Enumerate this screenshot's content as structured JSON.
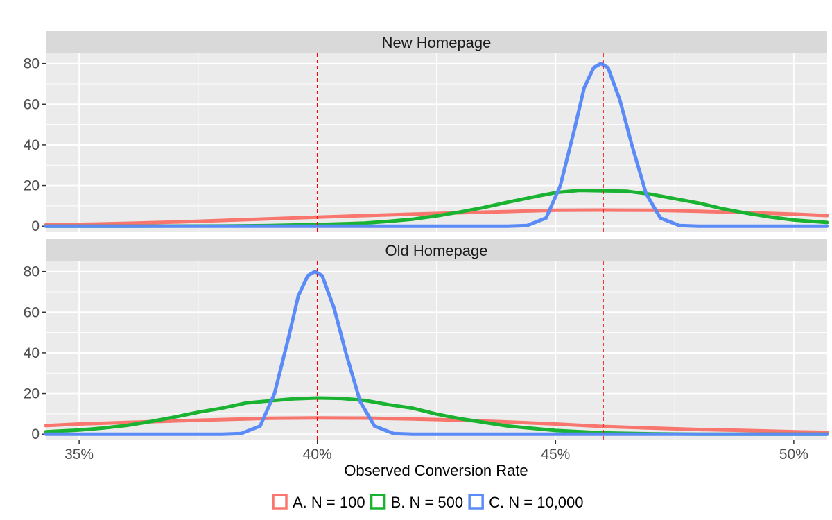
{
  "chart_data": {
    "type": "line",
    "xlabel": "Observed Conversion Rate",
    "ylabel": "",
    "xlim": [
      0.343,
      0.507
    ],
    "ylim": [
      -3,
      85
    ],
    "x_ticks": [
      0.35,
      0.4,
      0.45,
      0.5
    ],
    "x_tick_labels": [
      "35%",
      "40%",
      "45%",
      "50%"
    ],
    "y_ticks": [
      0,
      20,
      40,
      60,
      80
    ],
    "y_tick_labels": [
      "0",
      "20",
      "40",
      "60",
      "80"
    ],
    "grid": true,
    "legend_position": "bottom",
    "reference_lines": [
      0.4,
      0.46
    ],
    "reference_line_color": "#ff0000",
    "series_styles": [
      {
        "name": "A. N = 100",
        "color": "#f8766d"
      },
      {
        "name": "B. N = 500",
        "color": "#19b231"
      },
      {
        "name": "C. N = 10,000",
        "color": "#5b8bf7"
      }
    ],
    "facets": [
      {
        "title": "New Homepage",
        "series": [
          {
            "name": "A. N = 100",
            "x": [
              0.343,
              0.35,
              0.36,
              0.37,
              0.38,
              0.39,
              0.4,
              0.41,
              0.42,
              0.43,
              0.44,
              0.45,
              0.46,
              0.47,
              0.48,
              0.49,
              0.5,
              0.507
            ],
            "y": [
              0.6,
              0.9,
              1.4,
              2.0,
              2.8,
              3.6,
              4.4,
              5.2,
              5.9,
              6.6,
              7.2,
              7.8,
              7.9,
              7.8,
              7.3,
              6.7,
              5.9,
              5.2
            ]
          },
          {
            "name": "B. N = 500",
            "x": [
              0.343,
              0.36,
              0.38,
              0.39,
              0.4,
              0.41,
              0.415,
              0.42,
              0.425,
              0.43,
              0.435,
              0.44,
              0.445,
              0.45,
              0.455,
              0.46,
              0.465,
              0.47,
              0.475,
              0.48,
              0.485,
              0.49,
              0.495,
              0.5,
              0.507
            ],
            "y": [
              0,
              0,
              0.1,
              0.3,
              0.8,
              1.5,
              2.4,
              3.4,
              5.0,
              7.0,
              9.2,
              11.8,
              14.2,
              16.5,
              17.6,
              17.4,
              17.2,
              15.7,
              13.5,
              11.4,
              8.6,
              6.4,
              4.5,
              3.0,
              1.8
            ]
          },
          {
            "name": "C. N = 10,000",
            "x": [
              0.343,
              0.44,
              0.444,
              0.448,
              0.451,
              0.454,
              0.456,
              0.458,
              0.4595,
              0.461,
              0.4635,
              0.466,
              0.469,
              0.472,
              0.476,
              0.48,
              0.507
            ],
            "y": [
              0,
              0,
              0.3,
              4,
              20,
              48,
              68,
              78,
              80,
              78,
              62,
              40,
              16,
              4,
              0.3,
              0,
              0
            ]
          }
        ]
      },
      {
        "title": "Old Homepage",
        "series": [
          {
            "name": "A. N = 100",
            "x": [
              0.343,
              0.35,
              0.36,
              0.37,
              0.38,
              0.39,
              0.4,
              0.41,
              0.42,
              0.43,
              0.44,
              0.45,
              0.46,
              0.47,
              0.48,
              0.49,
              0.5,
              0.507
            ],
            "y": [
              4.2,
              5.0,
              5.8,
              6.5,
              7.2,
              7.8,
              8.0,
              7.9,
              7.5,
              6.9,
              6.0,
              5.0,
              3.8,
              3.0,
              2.3,
              1.8,
              1.2,
              0.9
            ]
          },
          {
            "name": "B. N = 500",
            "x": [
              0.343,
              0.35,
              0.355,
              0.36,
              0.365,
              0.37,
              0.375,
              0.38,
              0.385,
              0.39,
              0.395,
              0.4,
              0.405,
              0.41,
              0.415,
              0.42,
              0.425,
              0.43,
              0.44,
              0.45,
              0.46,
              0.47,
              0.48,
              0.507
            ],
            "y": [
              1.2,
              2.0,
              3.0,
              4.3,
              6.2,
              8.4,
              10.8,
              12.8,
              15.3,
              16.4,
              17.4,
              17.8,
              17.6,
              16.6,
              14.5,
              12.8,
              9.9,
              7.6,
              4.0,
              1.8,
              0.6,
              0.2,
              0,
              0
            ]
          },
          {
            "name": "C. N = 10,000",
            "x": [
              0.343,
              0.38,
              0.384,
              0.388,
              0.391,
              0.394,
              0.396,
              0.398,
              0.3995,
              0.401,
              0.4035,
              0.406,
              0.409,
              0.412,
              0.416,
              0.42,
              0.507
            ],
            "y": [
              0,
              0,
              0.3,
              4,
              20,
              48,
              68,
              78,
              80,
              78,
              62,
              40,
              16,
              4,
              0.3,
              0,
              0
            ]
          }
        ]
      }
    ]
  }
}
